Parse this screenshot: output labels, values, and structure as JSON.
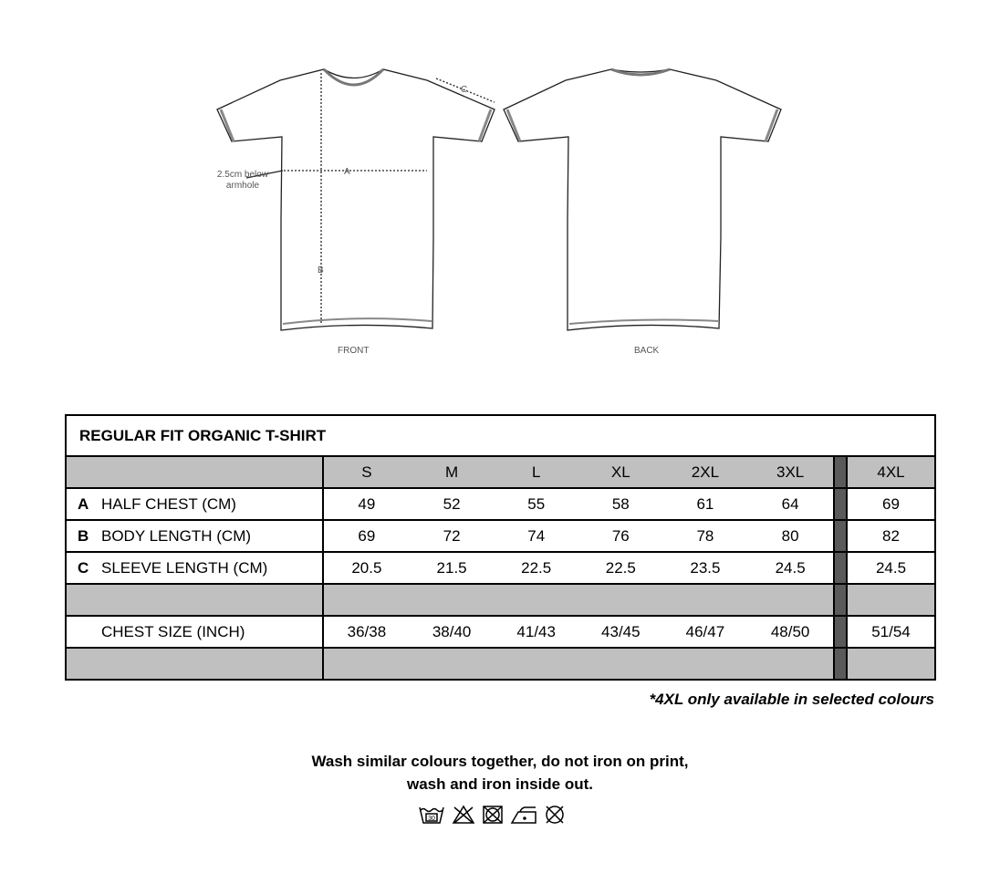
{
  "illustration": {
    "front_label": "FRONT",
    "back_label": "BACK",
    "measure_a": "A",
    "measure_b": "B",
    "measure_c": "C",
    "armhole_note": "2.5cm below armhole"
  },
  "table": {
    "title": "REGULAR FIT ORGANIC T-SHIRT",
    "sizes": [
      "S",
      "M",
      "L",
      "XL",
      "2XL",
      "3XL",
      "4XL"
    ],
    "rows": [
      {
        "code": "A",
        "label": "HALF CHEST (CM)",
        "values": [
          "49",
          "52",
          "55",
          "58",
          "61",
          "64",
          "69"
        ]
      },
      {
        "code": "B",
        "label": "BODY LENGTH (CM)",
        "values": [
          "69",
          "72",
          "74",
          "76",
          "78",
          "80",
          "82"
        ]
      },
      {
        "code": "C",
        "label": "SLEEVE LENGTH (CM)",
        "values": [
          "20.5",
          "21.5",
          "22.5",
          "22.5",
          "23.5",
          "24.5",
          "24.5"
        ]
      }
    ],
    "chest": {
      "label": "CHEST SIZE (INCH)",
      "values": [
        "36/38",
        "38/40",
        "41/43",
        "43/45",
        "46/47",
        "48/50",
        "51/54"
      ]
    }
  },
  "note": "*4XL only available in selected colours",
  "care": {
    "line1": "Wash similar colours together, do not iron on print,",
    "line2": "wash and iron inside out.",
    "icons": [
      "wash-30-icon",
      "do-not-bleach-icon",
      "do-not-tumble-dry-icon",
      "iron-low-icon",
      "do-not-dry-clean-icon"
    ],
    "wash_temp": "30"
  }
}
